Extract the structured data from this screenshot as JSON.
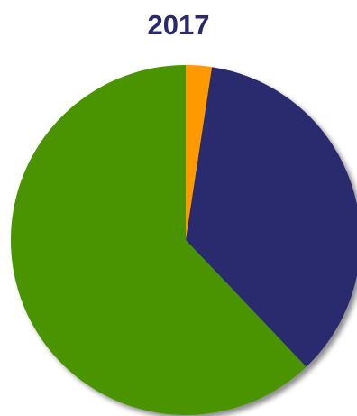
{
  "chart_data": {
    "type": "pie",
    "title": "2017",
    "start_angle_deg": 0,
    "direction": "clockwise",
    "slices": [
      {
        "label": "",
        "value": 2.4,
        "color": "#ff9900"
      },
      {
        "label": "",
        "value": 35.5,
        "color": "#29296e"
      },
      {
        "label": "",
        "value": 62.1,
        "color": "#4a9400"
      }
    ],
    "legend": "none"
  },
  "colors": {
    "title": "#29296e",
    "background": "#ffffff"
  }
}
